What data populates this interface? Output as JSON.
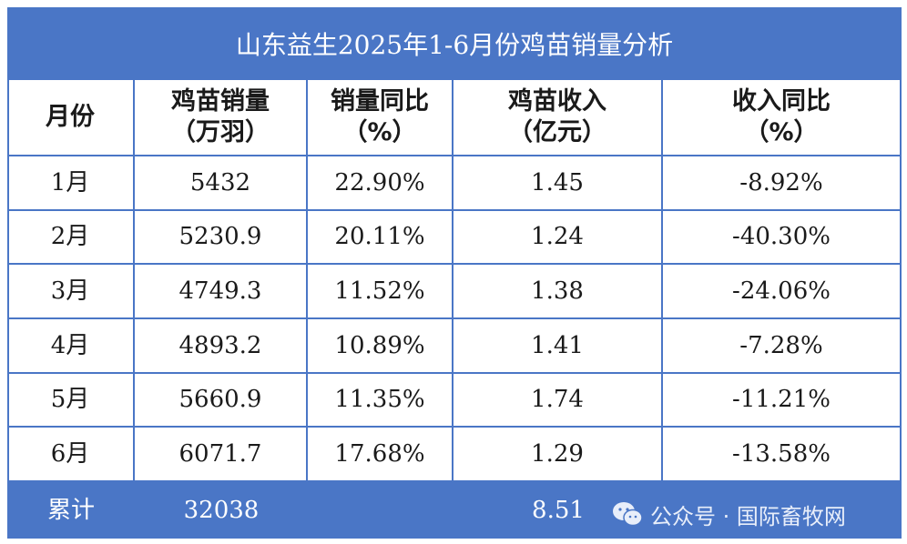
{
  "title": "山东益生2025年1-6月份鸡苗销量分析",
  "header": [
    [
      "月份"
    ],
    [
      "鸡苗销量",
      "（万羽）"
    ],
    [
      "销量同比",
      "（%）"
    ],
    [
      "鸡苗收入",
      "（亿元）"
    ],
    [
      "收入同比",
      "（%）"
    ]
  ],
  "rows": [
    [
      "1月",
      "5432",
      "22.90%",
      "1.45",
      "-8.92%"
    ],
    [
      "2月",
      "5230.9",
      "20.11%",
      "1.24",
      "-40.30%"
    ],
    [
      "3月",
      "4749.3",
      "11.52%",
      "1.38",
      "-24.06%"
    ],
    [
      "4月",
      "4893.2",
      "10.89%",
      "1.41",
      "-7.28%"
    ],
    [
      "5月",
      "5660.9",
      "11.35%",
      "1.74",
      "-11.21%"
    ],
    [
      "6月",
      "6071.7",
      "17.68%",
      "1.29",
      "-13.58%"
    ]
  ],
  "footer": {
    "label": "累计",
    "sales": "32038",
    "revenue": "8.51"
  },
  "watermark": "公众号 · 国际畜牧网"
}
